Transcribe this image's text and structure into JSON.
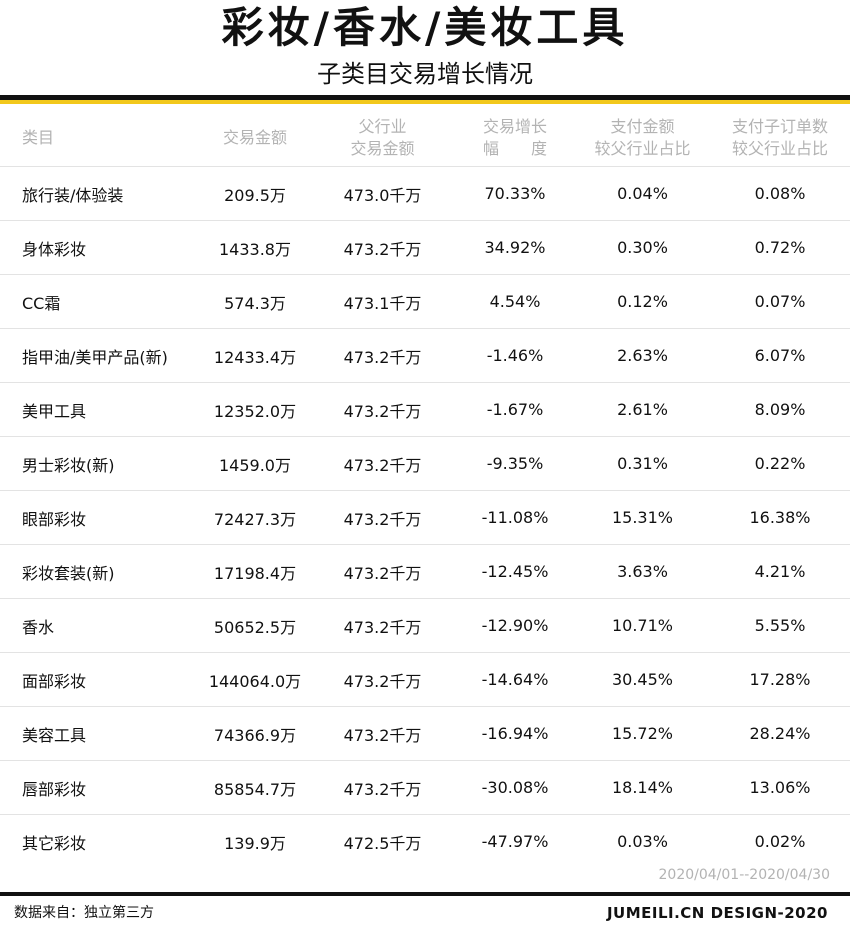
{
  "title": "彩妆/香水/美妆工具",
  "subtitle": "子类目交易增长情况",
  "table": {
    "headers": [
      {
        "line1": "类目",
        "line2": ""
      },
      {
        "line1": "交易金额",
        "line2": ""
      },
      {
        "line1": "父行业",
        "line2": "交易金额"
      },
      {
        "line1": "交易增长",
        "line2": "幅　　度"
      },
      {
        "line1": "支付金额",
        "line2": "较父行业占比"
      },
      {
        "line1": "支付子订单数",
        "line2": "较父行业占比"
      }
    ],
    "rows": [
      [
        "旅行装/体验装",
        "209.5万",
        "473.0千万",
        "70.33%",
        "0.04%",
        "0.08%"
      ],
      [
        "身体彩妆",
        "1433.8万",
        "473.2千万",
        "34.92%",
        "0.30%",
        "0.72%"
      ],
      [
        "CC霜",
        "574.3万",
        "473.1千万",
        "4.54%",
        "0.12%",
        "0.07%"
      ],
      [
        "指甲油/美甲产品(新)",
        "12433.4万",
        "473.2千万",
        "-1.46%",
        "2.63%",
        "6.07%"
      ],
      [
        "美甲工具",
        "12352.0万",
        "473.2千万",
        "-1.67%",
        "2.61%",
        "8.09%"
      ],
      [
        "男士彩妆(新)",
        "1459.0万",
        "473.2千万",
        "-9.35%",
        "0.31%",
        "0.22%"
      ],
      [
        "眼部彩妆",
        "72427.3万",
        "473.2千万",
        "-11.08%",
        "15.31%",
        "16.38%"
      ],
      [
        "彩妆套装(新)",
        "17198.4万",
        "473.2千万",
        "-12.45%",
        "3.63%",
        "4.21%"
      ],
      [
        "香水",
        "50652.5万",
        "473.2千万",
        "-12.90%",
        "10.71%",
        "5.55%"
      ],
      [
        "面部彩妆",
        "144064.0万",
        "473.2千万",
        "-14.64%",
        "30.45%",
        "17.28%"
      ],
      [
        "美容工具",
        "74366.9万",
        "473.2千万",
        "-16.94%",
        "15.72%",
        "28.24%"
      ],
      [
        "唇部彩妆",
        "85854.7万",
        "473.2千万",
        "-30.08%",
        "18.14%",
        "13.06%"
      ],
      [
        "其它彩妆",
        "139.9万",
        "472.5千万",
        "-47.97%",
        "0.03%",
        "0.02%"
      ]
    ]
  },
  "date_range": "2020/04/01--2020/04/30",
  "footer": {
    "source": "数据来自：独立第三方",
    "brand": "JUMEILI.CN DESIGN-2020"
  },
  "colors": {
    "accent_gold": "#f2c81c",
    "rule_black": "#111111",
    "header_text": "#b3b3b3"
  }
}
